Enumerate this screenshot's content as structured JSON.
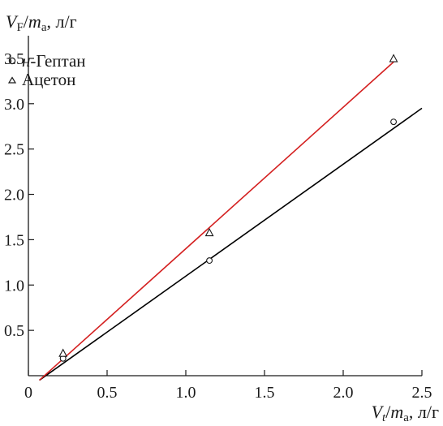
{
  "chart_data": {
    "type": "scatter",
    "title": "",
    "ylabel": {
      "main": "V",
      "sub": "F",
      "sep": "/",
      "denom": "m",
      "denom_sub": "a",
      "unit": ", л/г"
    },
    "xlabel": {
      "main": "V",
      "sub": "t",
      "sep": "/",
      "denom": "m",
      "denom_sub": "a",
      "unit": ", л/г"
    },
    "xlim": [
      0,
      2.5
    ],
    "ylim": [
      0,
      3.75
    ],
    "x_ticks": [
      0,
      0.5,
      1.0,
      1.5,
      2.0,
      2.5
    ],
    "x_tick_labels": [
      "0",
      "0.5",
      "1.0",
      "1.5",
      "2.0",
      "2.5"
    ],
    "y_ticks": [
      0.5,
      1.0,
      1.5,
      2.0,
      2.5,
      3.0,
      3.5
    ],
    "y_tick_labels": [
      "0.5",
      "1.0",
      "1.5",
      "2.0",
      "2.5",
      "3.0",
      "3.5"
    ],
    "grid": false,
    "legend_position": "top-left",
    "series": [
      {
        "name_italic": "н",
        "name_rest": "-Гептан",
        "marker": "circle",
        "x": [
          0.22,
          1.15,
          2.32
        ],
        "y": [
          0.19,
          1.27,
          2.8
        ],
        "fit": {
          "x": [
            0.07,
            2.5
          ],
          "y": [
            -0.05,
            2.95
          ],
          "color": "#000000"
        }
      },
      {
        "name": "Ацетон",
        "marker": "triangle",
        "x": [
          0.22,
          1.15,
          2.32
        ],
        "y": [
          0.24,
          1.57,
          3.49
        ],
        "fit": {
          "x": [
            0.07,
            2.32
          ],
          "y": [
            -0.05,
            3.46
          ],
          "color": "#d42020"
        }
      }
    ]
  }
}
